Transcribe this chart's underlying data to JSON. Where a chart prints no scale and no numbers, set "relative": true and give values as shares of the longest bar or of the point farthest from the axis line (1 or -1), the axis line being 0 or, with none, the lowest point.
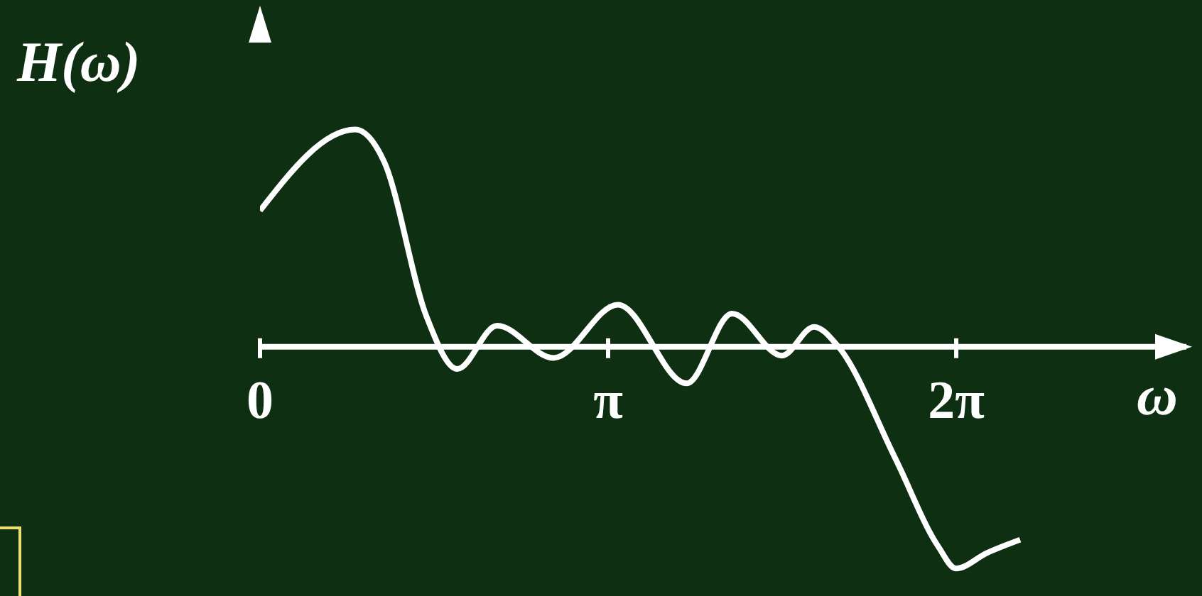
{
  "chart_data": {
    "type": "line",
    "relative": true,
    "xlabel": "ω",
    "ylabel": "H(ω)",
    "x": [
      0,
      0.86,
      1.12,
      1.5,
      1.78,
      2.14,
      2.65,
      3.23,
      3.85,
      4.26,
      4.71,
      5.0,
      5.22,
      5.73,
      6.12,
      6.28,
      6.56,
      6.86
    ],
    "series": [
      {
        "color": "#ffffff",
        "values": [
          0.614,
          0.98,
          0.835,
          0.14,
          -0.1,
          0.095,
          -0.05,
          0.19,
          -0.165,
          0.15,
          -0.04,
          0.09,
          0,
          -0.5,
          -0.9,
          -1,
          -0.93,
          -0.87
        ]
      }
    ],
    "xlim": [
      0,
      8.36
    ],
    "xticks": [
      {
        "value": 0,
        "label": "0"
      },
      {
        "value": 3.1416,
        "label": "π"
      },
      {
        "value": 6.2832,
        "label": "2π"
      }
    ],
    "marker": "none",
    "line_style": "solid"
  }
}
